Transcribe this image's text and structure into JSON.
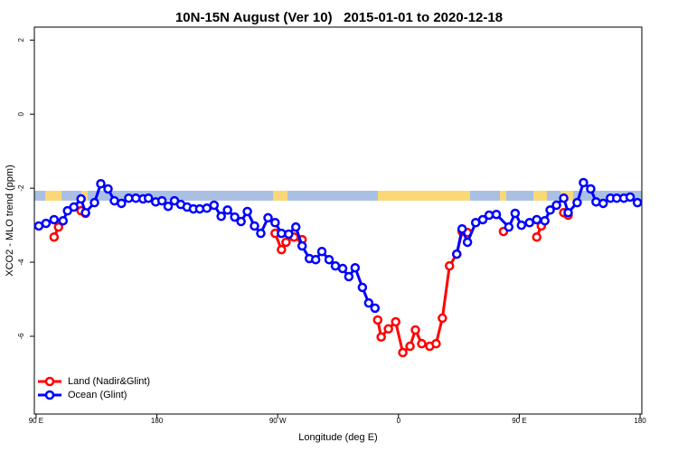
{
  "chart_data": {
    "type": "line",
    "title": "10N-15N August (Ver 10)   2015-01-01 to 2020-12-18",
    "x_label": "Longitude (deg E)",
    "y_label": "XCO2 - MLO trend (ppm)",
    "xlim": [
      88.7,
      541.3
    ],
    "ylim": [
      -8.1,
      2.35
    ],
    "xticks": [
      {
        "value": 90,
        "label": "90 E"
      },
      180,
      {
        "value": 270,
        "label": "90 W"
      },
      0,
      {
        "value": 450,
        "label": "90 E"
      },
      {
        "value": 540,
        "label": "180"
      }
    ],
    "yticks": [
      2,
      0,
      -2,
      -4,
      -6
    ],
    "legend": "bottomleft",
    "series": [
      {
        "name": "Land (Nadir&Glint)",
        "color": "#ff0000",
        "x": [
          103.4,
          106.7,
          null,
          123.5,
          126.8,
          null,
          268.1,
          272.8,
          276.2,
          282.2,
          288.2,
          null,
          344.5,
          347.1,
          352.5,
          357.9,
          363.2,
          368.6,
          372.6,
          377.3,
          383.3,
          388.0,
          392.7,
          398.0,
          403.4,
          407.4,
          411.4,
          null,
          438.2,
          null,
          463.0,
          466.4,
          null,
          483.1,
          486.4
        ],
        "values": [
          -3.32,
          -3.05,
          null,
          -2.61,
          -2.68,
          null,
          -3.22,
          -3.66,
          -3.46,
          -3.32,
          -3.39,
          null,
          -5.56,
          -6.02,
          -5.8,
          -5.61,
          -6.44,
          -6.27,
          -5.83,
          -6.2,
          -6.27,
          -6.2,
          -5.51,
          -4.1,
          -3.78,
          -3.17,
          -3.2,
          null,
          -3.17,
          null,
          -3.32,
          -3.02,
          null,
          -2.66,
          -2.73
        ]
      },
      {
        "name": "Ocean (Glint)",
        "color": "#0000ff",
        "x": [
          92.0,
          97.4,
          103.4,
          110.1,
          113.4,
          118.1,
          123.5,
          126.8,
          133.5,
          138.2,
          143.6,
          148.3,
          153.6,
          159.0,
          164.3,
          169.7,
          173.7,
          179.1,
          183.8,
          188.4,
          193.1,
          197.8,
          202.5,
          207.2,
          211.9,
          217.2,
          222.6,
          227.9,
          232.6,
          238.0,
          242.7,
          247.4,
          252.7,
          257.4,
          262.8,
          268.1,
          272.8,
          278.2,
          283.5,
          288.2,
          293.6,
          298.3,
          302.9,
          308.3,
          313.0,
          318.4,
          323.0,
          327.7,
          333.1,
          337.8,
          342.5,
          null,
          403.4,
          407.4,
          411.4,
          417.5,
          422.8,
          427.5,
          432.9,
          442.2,
          446.9,
          451.6,
          457.6,
          463.0,
          469.0,
          473.0,
          477.7,
          483.1,
          486.4,
          493.1,
          497.8,
          503.2,
          507.2,
          512.5,
          517.9,
          522.6,
          527.9,
          532.6,
          538.0
        ],
        "values": [
          -3.02,
          -2.95,
          -2.85,
          -2.88,
          -2.61,
          -2.51,
          -2.29,
          -2.66,
          -2.39,
          -1.88,
          -2.02,
          -2.34,
          -2.41,
          -2.27,
          -2.27,
          -2.29,
          -2.27,
          -2.37,
          -2.34,
          -2.49,
          -2.34,
          -2.44,
          -2.51,
          -2.56,
          -2.56,
          -2.54,
          -2.46,
          -2.76,
          -2.59,
          -2.78,
          -2.9,
          -2.63,
          -3.02,
          -3.22,
          -2.8,
          -2.93,
          -3.22,
          -3.24,
          -3.05,
          -3.56,
          -3.9,
          -3.93,
          -3.71,
          -3.93,
          -4.1,
          -4.17,
          -4.39,
          -4.15,
          -4.68,
          -5.1,
          -5.24,
          null,
          -3.78,
          -3.1,
          -3.46,
          -2.93,
          -2.85,
          -2.73,
          -2.71,
          -3.05,
          -2.68,
          -3.0,
          -2.93,
          -2.85,
          -2.88,
          -2.59,
          -2.46,
          -2.27,
          -2.66,
          -2.39,
          -1.85,
          -2.02,
          -2.37,
          -2.41,
          -2.27,
          -2.27,
          -2.27,
          -2.24,
          -2.39
        ]
      }
    ]
  }
}
